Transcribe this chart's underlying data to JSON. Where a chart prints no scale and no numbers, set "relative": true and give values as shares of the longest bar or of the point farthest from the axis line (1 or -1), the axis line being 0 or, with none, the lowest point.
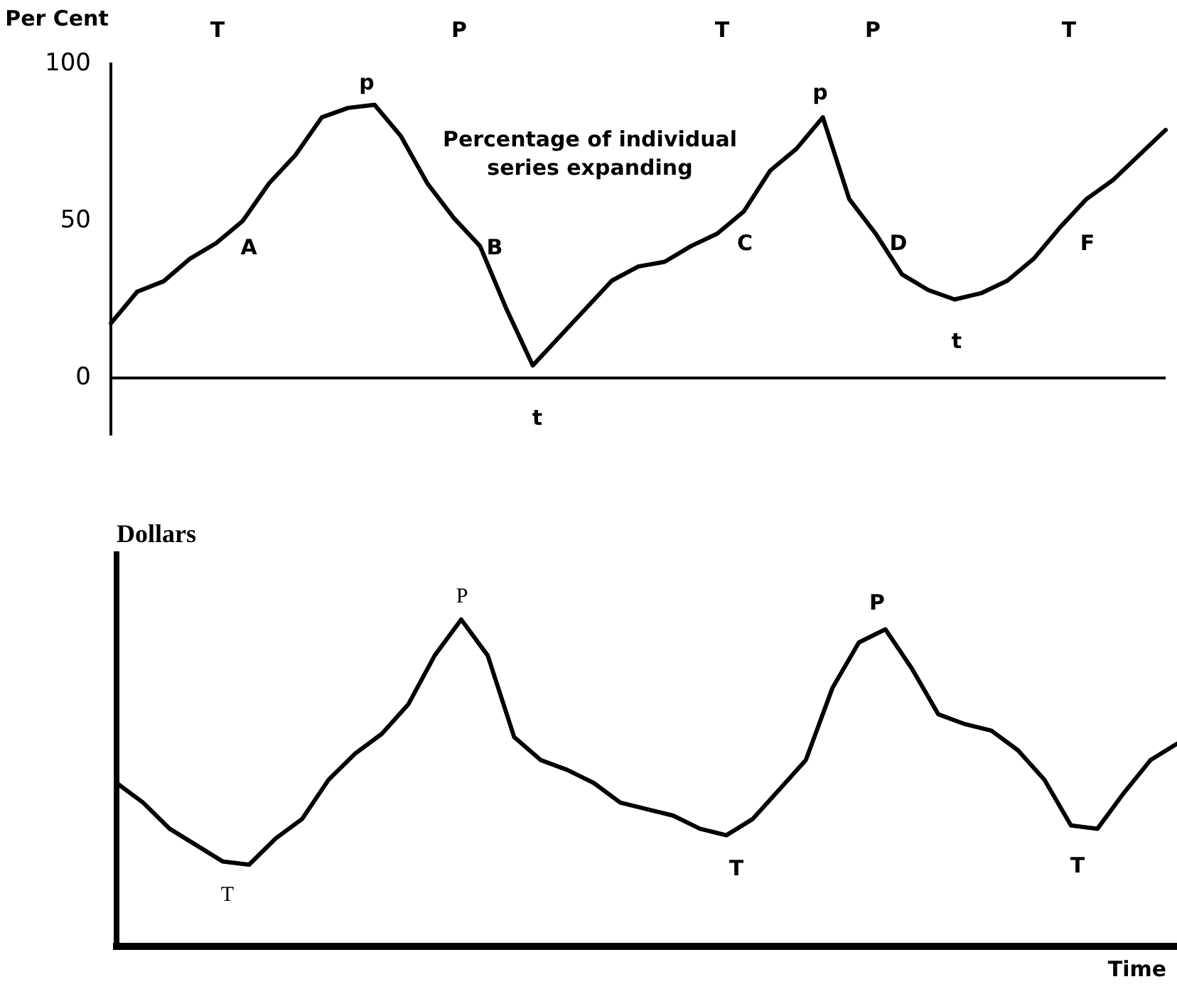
{
  "chart_data": [
    {
      "type": "line",
      "ylabel": "Per Cent",
      "ylim": [
        -18,
        100
      ],
      "yticks": [
        0,
        50,
        100
      ],
      "tick_labels": "y",
      "categories": [
        null,
        null,
        null,
        null,
        null,
        null,
        null,
        null,
        null,
        null,
        null,
        null,
        null,
        null,
        null,
        null,
        null,
        null,
        null,
        null,
        null,
        null,
        null,
        null,
        null,
        null,
        null,
        null,
        null,
        null,
        null,
        null,
        null,
        null,
        null,
        null,
        null,
        null,
        null,
        null,
        null
      ],
      "series": [
        {
          "color": "#000000",
          "values": [
            17.4,
            27.5,
            30.8,
            38,
            43,
            50,
            62,
            71,
            83,
            86,
            87,
            77,
            62,
            51,
            42,
            22,
            4,
            13,
            22,
            31,
            35.5,
            37,
            42,
            46,
            53,
            66,
            73,
            83,
            57,
            46,
            33,
            28,
            25,
            27,
            31,
            38,
            48,
            57,
            63,
            71,
            79
          ]
        }
      ],
      "ref_lines": [
        {
          "axis": "y",
          "value": 0
        }
      ],
      "annotations": [
        "T",
        "P",
        "T",
        "P",
        "T",
        "p",
        "p",
        "A",
        "B",
        "C",
        "D",
        "F",
        "t",
        "t",
        "Percentage of individual series expanding"
      ]
    },
    {
      "type": "line",
      "ylabel": "Dollars",
      "xlabel": "Time",
      "relative": true,
      "tick_labels": false,
      "categories": [
        null,
        null,
        null,
        null,
        null,
        null,
        null,
        null,
        null,
        null,
        null,
        null,
        null,
        null,
        null,
        null,
        null,
        null,
        null,
        null,
        null,
        null,
        null,
        null,
        null,
        null,
        null,
        null,
        null,
        null,
        null,
        null,
        null,
        null,
        null,
        null,
        null,
        null,
        null,
        null,
        null
      ],
      "series": [
        {
          "color": "#000000",
          "values": [
            0.5,
            0.44,
            0.36,
            0.31,
            0.26,
            0.25,
            0.33,
            0.39,
            0.51,
            0.59,
            0.65,
            0.74,
            0.89,
            1,
            0.89,
            0.64,
            0.57,
            0.54,
            0.5,
            0.44,
            0.42,
            0.4,
            0.36,
            0.34,
            0.39,
            0.48,
            0.57,
            0.79,
            0.93,
            0.97,
            0.85,
            0.71,
            0.68,
            0.66,
            0.6,
            0.51,
            0.37,
            0.36,
            0.47,
            0.57,
            0.62
          ]
        }
      ],
      "annotations": [
        "P",
        "P",
        "T",
        "T",
        "T"
      ]
    }
  ]
}
